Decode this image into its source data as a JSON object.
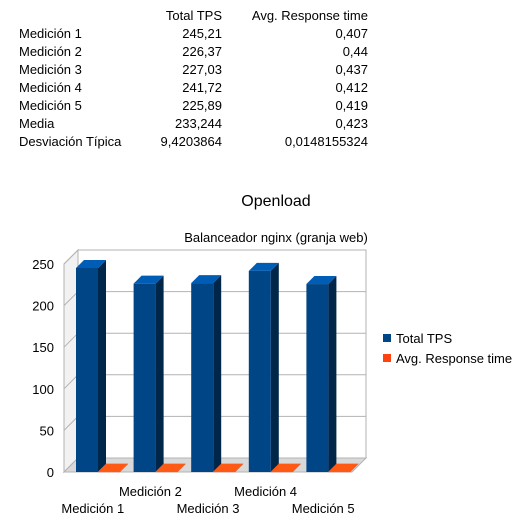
{
  "table": {
    "headers": [
      "",
      "Total TPS",
      "Avg. Response time"
    ],
    "rows": [
      [
        "Medición 1",
        "245,21",
        "0,407"
      ],
      [
        "Medición 2",
        "226,37",
        "0,44"
      ],
      [
        "Medición 3",
        "227,03",
        "0,437"
      ],
      [
        "Medición 4",
        "241,72",
        "0,412"
      ],
      [
        "Medición 5",
        "225,89",
        "0,419"
      ],
      [
        "Media",
        "233,244",
        "0,423"
      ],
      [
        "Desviación Típica",
        "9,4203864",
        "0,0148155324"
      ]
    ]
  },
  "chart_data": {
    "type": "bar",
    "title": "Openload",
    "subtitle": "Balanceador nginx (granja web)",
    "categories": [
      "Medición 1",
      "Medición 2",
      "Medición 3",
      "Medición 4",
      "Medición 5"
    ],
    "series": [
      {
        "name": "Total TPS",
        "values": [
          245.21,
          226.37,
          227.03,
          241.72,
          225.89
        ],
        "color": "#004586"
      },
      {
        "name": "Avg. Response time",
        "values": [
          0.407,
          0.44,
          0.437,
          0.412,
          0.419
        ],
        "color": "#ff420e"
      }
    ],
    "ylim": [
      0,
      250
    ],
    "yticks": [
      0,
      50,
      100,
      150,
      200,
      250
    ],
    "grid": true,
    "legend": "right",
    "style": "3d"
  }
}
